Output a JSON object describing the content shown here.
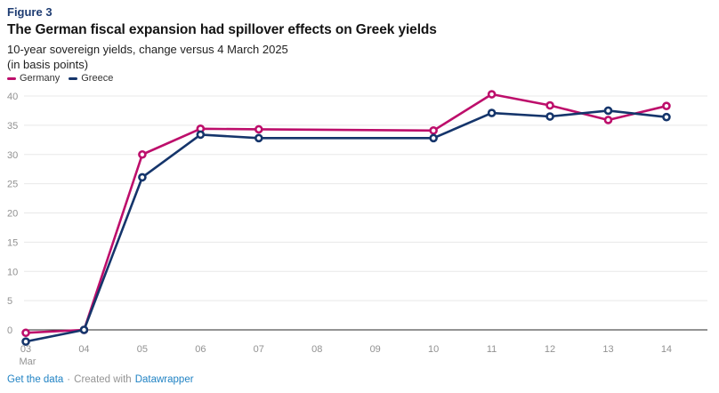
{
  "header": {
    "figure_label": "Figure 3"
  },
  "colors": {
    "figure_label": "#1e3c72",
    "germany": "#bd0e6b",
    "greece": "#15356b",
    "gridline": "#e8e8e8",
    "zero_line": "#2a2a2a",
    "axis_text": "#929292",
    "footer_link": "#2183c4",
    "footer_text": "#949494"
  },
  "footer": {
    "get_data_label": "Get the data",
    "separator": "·",
    "created_with": "Created with",
    "datawrapper_label": "Datawrapper"
  },
  "chart_data": {
    "type": "line",
    "title": "The German fiscal expansion had spillover effects on Greek yields",
    "subtitle": "10-year sovereign yields, change versus 4 March 2025",
    "unit": "(in basis points)",
    "grid": true,
    "legend_position": "top-left",
    "x_axis": {
      "month_label": "Mar",
      "first_day": 3,
      "tick_days": [
        "03",
        "04",
        "05",
        "06",
        "07",
        "08",
        "09",
        "10",
        "11",
        "12",
        "13",
        "14"
      ]
    },
    "y_axis": {
      "ticks": [
        0,
        5,
        10,
        15,
        20,
        25,
        30,
        35,
        40
      ],
      "range": [
        -3,
        41
      ]
    },
    "series": [
      {
        "name": "Germany",
        "color": "#bd0e6b",
        "days": [
          3,
          4,
          5,
          6,
          7,
          10,
          11,
          12,
          13,
          14
        ],
        "values": [
          -0.5,
          0,
          30,
          34.4,
          34.3,
          34.1,
          40.3,
          38.4,
          35.9,
          38.3
        ]
      },
      {
        "name": "Greece",
        "color": "#15356b",
        "days": [
          3,
          4,
          5,
          6,
          7,
          10,
          11,
          12,
          13,
          14
        ],
        "values": [
          -2,
          0,
          26.1,
          33.4,
          32.8,
          32.8,
          37.1,
          36.5,
          37.5,
          36.4
        ]
      }
    ]
  }
}
